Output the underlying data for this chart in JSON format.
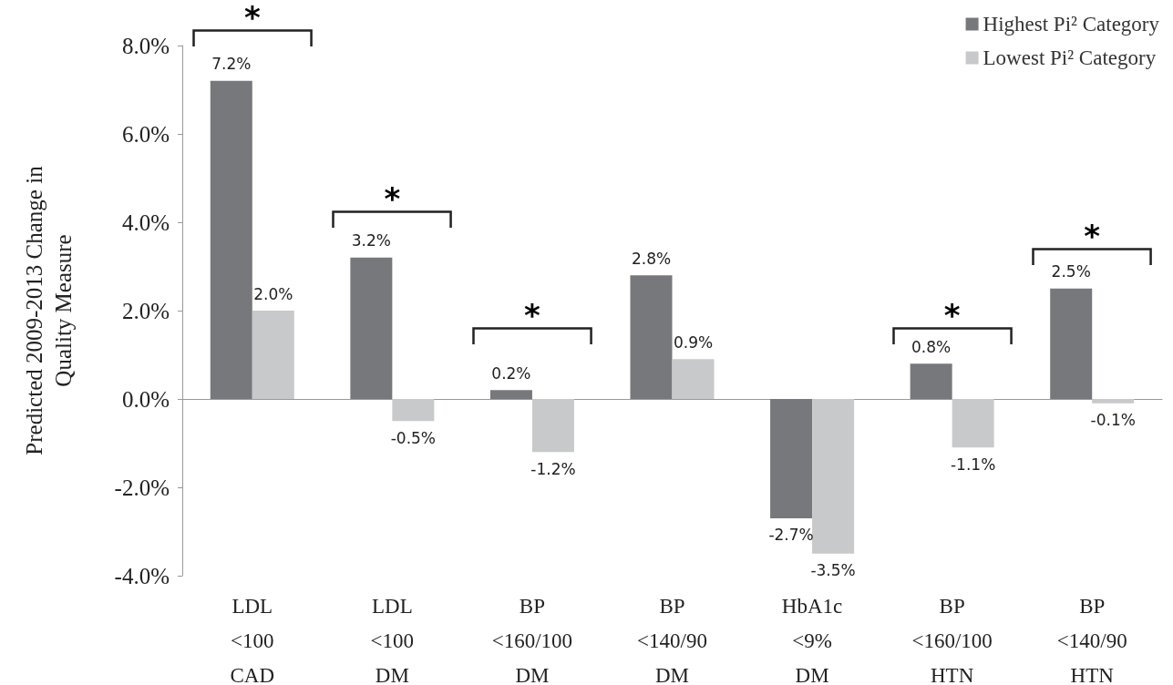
{
  "chart_data": {
    "type": "bar",
    "ylabel": "Predicted 2009-2013 Change in\nQuality Measure",
    "categories": [
      "LDL\n<100\nCAD",
      "LDL\n<100\nDM",
      "BP\n<160/100\nDM",
      "BP\n<140/90\nDM",
      "HbA1c\n<9%\nDM",
      "BP\n<160/100\nHTN",
      "BP\n<140/90\nHTN"
    ],
    "series": [
      {
        "name": "Highest Pi² Category",
        "color": "#76787b",
        "values": [
          7.2,
          3.2,
          0.2,
          2.8,
          -2.7,
          0.8,
          2.5
        ],
        "value_labels": [
          "7.2%",
          "3.2%",
          "0.2%",
          "2.8%",
          "-2.7%",
          "0.8%",
          "2.5%"
        ]
      },
      {
        "name": "Lowest Pi² Category",
        "color": "#c8c9cb",
        "values": [
          2.0,
          -0.5,
          -1.2,
          0.9,
          -3.5,
          -1.1,
          -0.1
        ],
        "value_labels": [
          "2.0%",
          "-0.5%",
          "-1.2%",
          "0.9%",
          "-3.5%",
          "-1.1%",
          "-0.1%"
        ]
      }
    ],
    "ylim": [
      -4,
      8
    ],
    "yticks": [
      {
        "value": -4,
        "label": "-4.0%"
      },
      {
        "value": -2,
        "label": "-2.0%"
      },
      {
        "value": 0,
        "label": "0.0%"
      },
      {
        "value": 2,
        "label": "2.0%"
      },
      {
        "value": 4,
        "label": "4.0%"
      },
      {
        "value": 6,
        "label": "6.0%"
      },
      {
        "value": 8,
        "label": "8.0%"
      }
    ],
    "annotations": [
      "*",
      "*",
      "*",
      "*",
      "*"
    ],
    "legend": "top right"
  }
}
